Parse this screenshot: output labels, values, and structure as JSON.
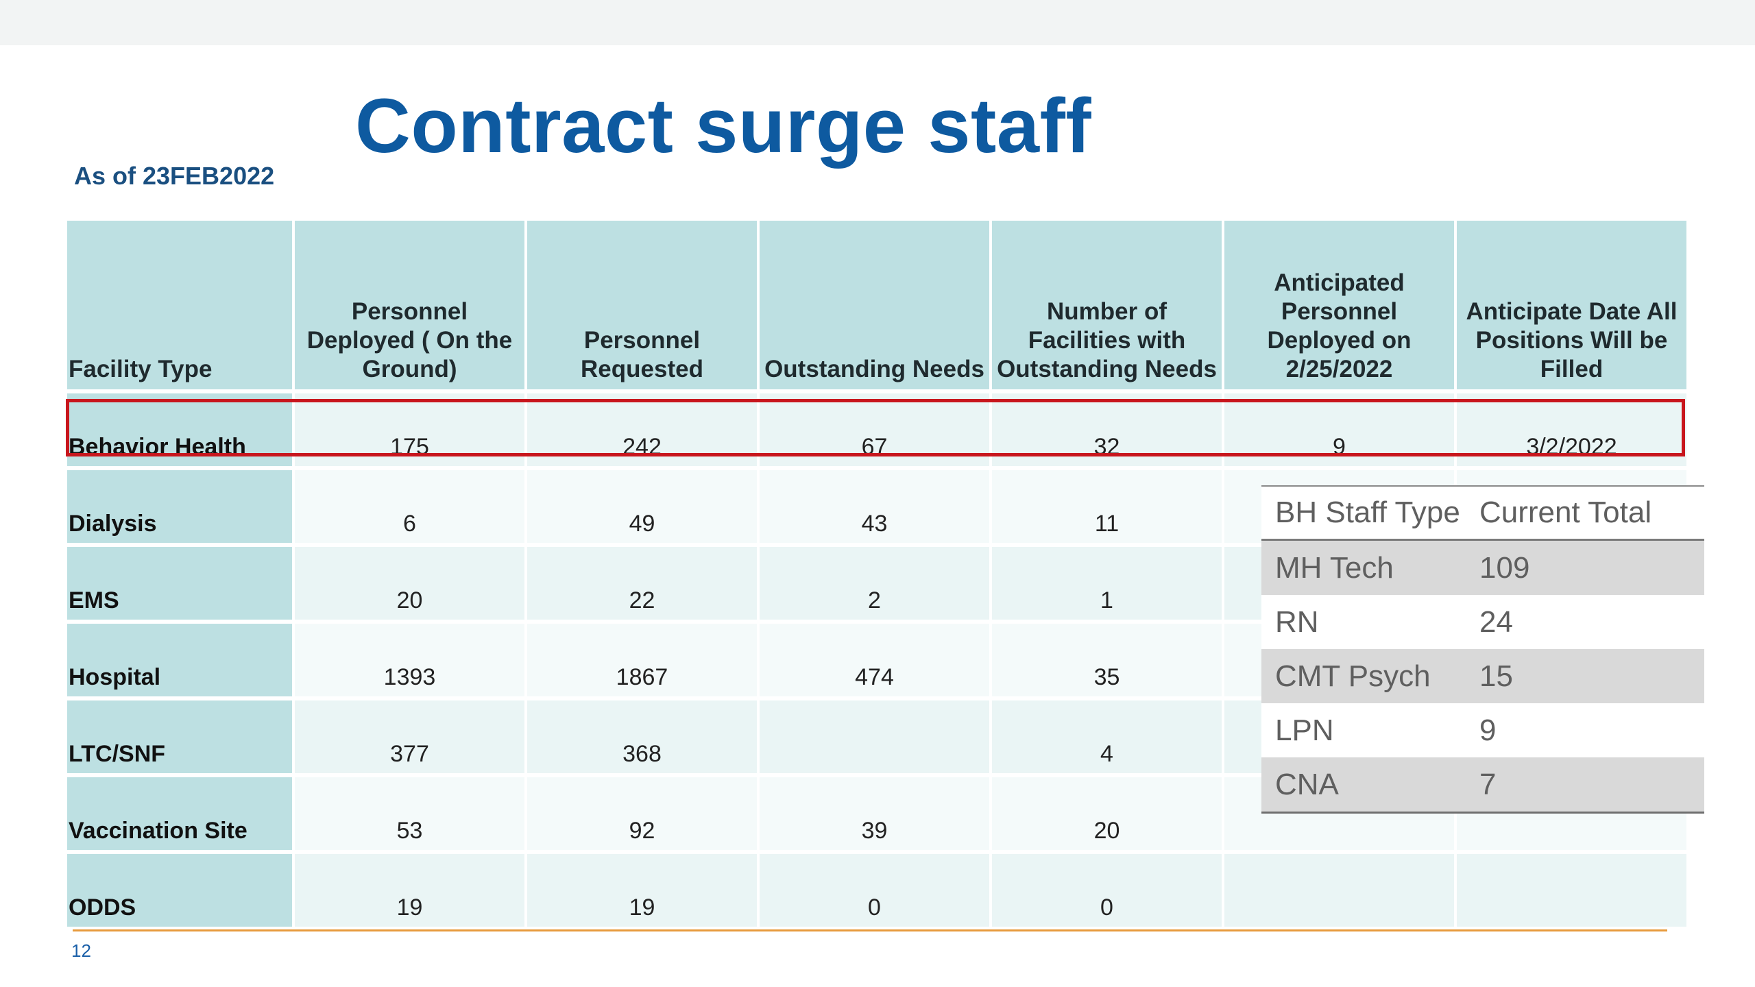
{
  "slide": {
    "title": "Contract surge staff",
    "as_of": "As of 23FEB2022",
    "page_number": "12",
    "highlight_color": "#c8161d",
    "title_color": "#0e5aa0"
  },
  "table": {
    "headers": [
      "Facility Type",
      "Personnel Deployed ( On the Ground)",
      "Personnel Requested",
      "Outstanding Needs",
      "Number of Facilities with Outstanding Needs",
      "Anticipated Personnel Deployed on 2/25/2022",
      "Anticipate Date All Positions Will be Filled"
    ],
    "rows": [
      [
        "Behavior Health",
        "175",
        "242",
        "67",
        "32",
        "9",
        "3/2/2022"
      ],
      [
        "Dialysis",
        "6",
        "49",
        "43",
        "11",
        "",
        ""
      ],
      [
        "EMS",
        "20",
        "22",
        "2",
        "1",
        "",
        ""
      ],
      [
        "Hospital",
        "1393",
        "1867",
        "474",
        "35",
        "",
        ""
      ],
      [
        "LTC/SNF",
        "377",
        "368",
        "",
        "4",
        "",
        ""
      ],
      [
        "Vaccination Site",
        "53",
        "92",
        "39",
        "20",
        "",
        ""
      ],
      [
        "ODDS",
        "19",
        "19",
        "0",
        "0",
        "",
        ""
      ]
    ],
    "highlighted_row": "Behavior Health"
  },
  "bh_staff": {
    "headers": [
      "BH Staff Type",
      "Current Total"
    ],
    "rows": [
      [
        "MH Tech",
        "109"
      ],
      [
        "RN",
        "24"
      ],
      [
        "CMT Psych",
        "15"
      ],
      [
        "LPN",
        "9"
      ],
      [
        "CNA",
        "7"
      ]
    ]
  }
}
